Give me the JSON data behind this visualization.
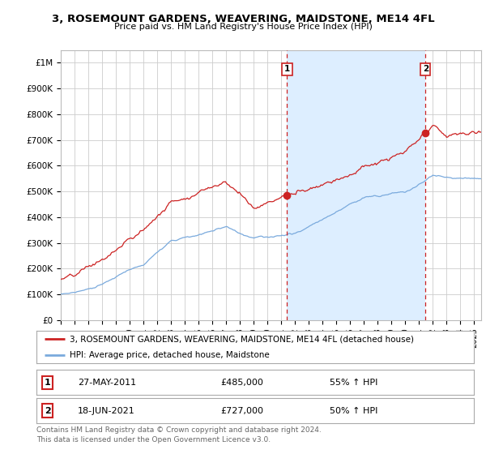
{
  "title": "3, ROSEMOUNT GARDENS, WEAVERING, MAIDSTONE, ME14 4FL",
  "subtitle": "Price paid vs. HM Land Registry's House Price Index (HPI)",
  "ylabel_ticks": [
    "£0",
    "£100K",
    "£200K",
    "£300K",
    "£400K",
    "£500K",
    "£600K",
    "£700K",
    "£800K",
    "£900K",
    "£1M"
  ],
  "ytick_vals": [
    0,
    100000,
    200000,
    300000,
    400000,
    500000,
    600000,
    700000,
    800000,
    900000,
    1000000
  ],
  "ylim": [
    0,
    1050000
  ],
  "xlim_start": 1995.0,
  "xlim_end": 2025.5,
  "red_color": "#cc2222",
  "blue_color": "#7aaadd",
  "shade_color": "#ddeeff",
  "marker1_x": 2011.42,
  "marker1_y": 485000,
  "marker2_x": 2021.46,
  "marker2_y": 727000,
  "vline1_x": 2011.42,
  "vline2_x": 2021.46,
  "legend_line1": "3, ROSEMOUNT GARDENS, WEAVERING, MAIDSTONE, ME14 4FL (detached house)",
  "legend_line2": "HPI: Average price, detached house, Maidstone",
  "table_row1": [
    "1",
    "27-MAY-2011",
    "£485,000",
    "55% ↑ HPI"
  ],
  "table_row2": [
    "2",
    "18-JUN-2021",
    "£727,000",
    "50% ↑ HPI"
  ],
  "footer": "Contains HM Land Registry data © Crown copyright and database right 2024.\nThis data is licensed under the Open Government Licence v3.0.",
  "background_color": "#ffffff",
  "grid_color": "#cccccc"
}
